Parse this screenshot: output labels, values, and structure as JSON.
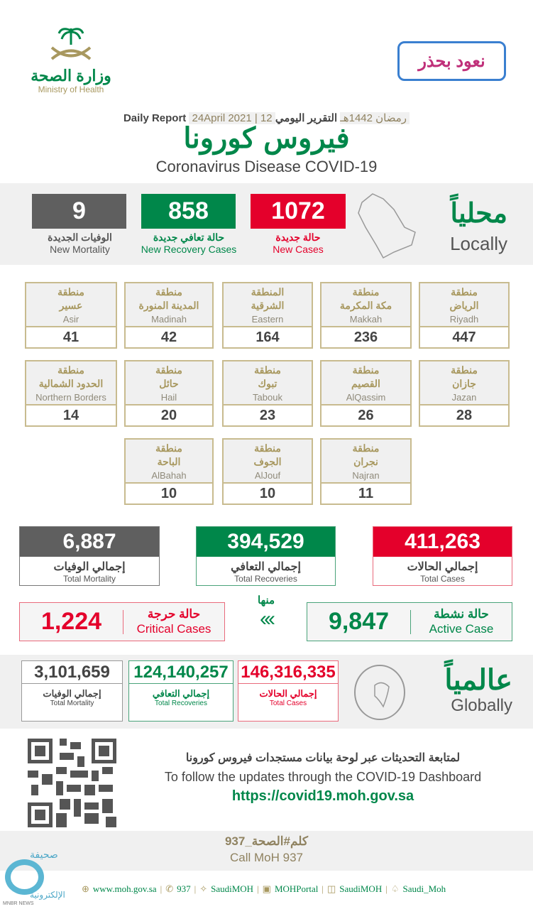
{
  "header": {
    "ministry_ar": "وزارة الصحة",
    "ministry_en": "Ministry of Health",
    "campaign": "نعود بحذر",
    "report_ar": "التقرير اليومي",
    "hijri": "12 رمضان 1442هـ",
    "gregorian": "24April 2021",
    "report_en": "Daily Report",
    "title_ar": "فيروس كورونا",
    "title_en": "Coronavirus Disease COVID-19"
  },
  "locally": {
    "label_ar": "محلياً",
    "label_en": "Locally",
    "new_cases": {
      "value": "1072",
      "ar": "حالة جديدة",
      "en": "New Cases"
    },
    "new_recovery": {
      "value": "858",
      "ar": "حالة تعافي جديدة",
      "en": "New Recovery Cases"
    },
    "new_mortality": {
      "value": "9",
      "ar": "الوفيات الجديدة",
      "en": "New Mortality"
    }
  },
  "regions": [
    {
      "prefix": "منطقة",
      "ar": "الرياض",
      "en": "Riyadh",
      "value": "447"
    },
    {
      "prefix": "منطقة",
      "ar": "مكة المكرمة",
      "en": "Makkah",
      "value": "236"
    },
    {
      "prefix": "المنطقة",
      "ar": "الشرقية",
      "en": "Eastern",
      "value": "164"
    },
    {
      "prefix": "منطقة",
      "ar": "المدينة المنورة",
      "en": "Madinah",
      "value": "42"
    },
    {
      "prefix": "منطقة",
      "ar": "عسير",
      "en": "Asir",
      "value": "41"
    },
    {
      "prefix": "منطقة",
      "ar": "جازان",
      "en": "Jazan",
      "value": "28"
    },
    {
      "prefix": "منطقة",
      "ar": "القصيم",
      "en": "AlQassim",
      "value": "26"
    },
    {
      "prefix": "منطقة",
      "ar": "تبوك",
      "en": "Tabouk",
      "value": "23"
    },
    {
      "prefix": "منطقة",
      "ar": "حائل",
      "en": "Hail",
      "value": "20"
    },
    {
      "prefix": "منطقة",
      "ar": "الحدود الشمالية",
      "en": "Northern Borders",
      "value": "14"
    },
    {
      "prefix": "منطقة",
      "ar": "نجران",
      "en": "Najran",
      "value": "11"
    },
    {
      "prefix": "منطقة",
      "ar": "الجوف",
      "en": "AlJouf",
      "value": "10"
    },
    {
      "prefix": "منطقة",
      "ar": "الباحة",
      "en": "AlBahah",
      "value": "10"
    }
  ],
  "totals": {
    "cases": {
      "value": "411,263",
      "ar": "إجمالي الحالات",
      "en": "Total Cases"
    },
    "recoveries": {
      "value": "394,529",
      "ar": "إجمالي التعافي",
      "en": "Total Recoveries"
    },
    "mortality": {
      "value": "6,887",
      "ar": "إجمالي الوفيات",
      "en": "Total Mortality"
    },
    "of_which": "منها",
    "active": {
      "value": "9,847",
      "ar": "حالة نشطة",
      "en": "Active Case"
    },
    "critical": {
      "value": "1,224",
      "ar": "حالة حرجة",
      "en": "Critical Cases"
    }
  },
  "globally": {
    "label_ar": "عالمياً",
    "label_en": "Globally",
    "cases": {
      "value": "146,316,335",
      "ar": "إجمالي الحالات",
      "en": "Total Cases"
    },
    "recoveries": {
      "value": "124,140,257",
      "ar": "إجمالي التعافي",
      "en": "Total Recoveries"
    },
    "mortality": {
      "value": "3,101,659",
      "ar": "إجمالي الوفيات",
      "en": "Total Mortality"
    }
  },
  "dashboard": {
    "ar": "لمتابعة التحديثات عبر لوحة بيانات مستجدات فيروس كورونا",
    "en": "To follow the updates through the COVID-19 Dashboard",
    "url": "https://covid19.moh.gov.sa"
  },
  "call": {
    "ar": "كلم#الصحة_937",
    "en": "Call MoH 937"
  },
  "footer": {
    "links": [
      "www.moh.gov.sa",
      "937",
      "SaudiMOH",
      "MOHPortal",
      "SaudiMOH",
      "Saudi_Moh"
    ],
    "watermark_ar": "صحيفة منبر الإلكترونية",
    "watermark_en": "MNBR NEWS"
  },
  "colors": {
    "red": "#e4002b",
    "green": "#00874a",
    "gray": "#5f5f5f",
    "gold": "#a8985f"
  }
}
